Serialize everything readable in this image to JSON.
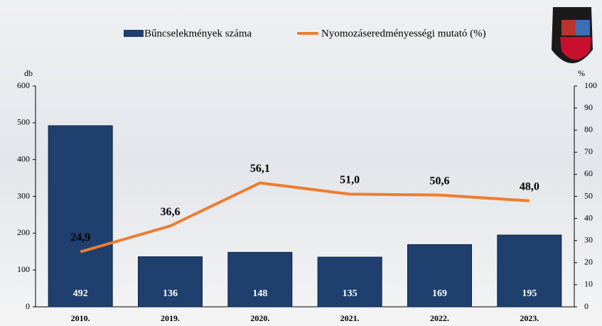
{
  "chart_data": {
    "type": "bar-line",
    "categories": [
      "2010.",
      "2019.",
      "2020.",
      "2021.",
      "2022.",
      "2023."
    ],
    "series": [
      {
        "name": "Bűncselekmények száma",
        "type": "bar",
        "color": "#1f3f6e",
        "values": [
          492,
          136,
          148,
          135,
          169,
          195
        ]
      },
      {
        "name": "Nyomozáseredményességi mutató (%)",
        "type": "line",
        "axis": "y2",
        "color": "#ed7d31",
        "values": [
          24.9,
          36.6,
          56.1,
          51.0,
          50.6,
          48.0
        ],
        "value_labels": [
          "24,9",
          "36,6",
          "56,1",
          "51,0",
          "50,6",
          "48,0"
        ]
      }
    ],
    "y_label": "db",
    "y2_label": "%",
    "ylim": [
      0,
      600
    ],
    "yticks": [
      0,
      100,
      200,
      300,
      400,
      500,
      600
    ],
    "y2lim": [
      0,
      100
    ],
    "y2ticks": [
      0,
      10,
      20,
      30,
      40,
      50,
      60,
      70,
      80,
      90,
      100
    ]
  }
}
